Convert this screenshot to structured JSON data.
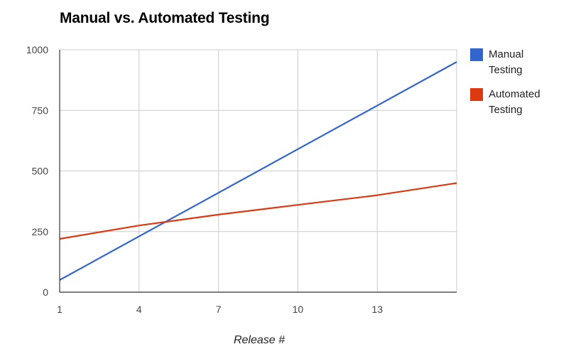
{
  "chart_data": {
    "type": "line",
    "title": "Manual vs. Automated Testing",
    "xlabel": "Release #",
    "ylabel": "",
    "xlim": [
      1,
      16
    ],
    "ylim": [
      0,
      1000
    ],
    "x_ticks": [
      1,
      4,
      7,
      10,
      13
    ],
    "y_ticks": [
      0,
      250,
      500,
      750,
      1000
    ],
    "grid": true,
    "legend_position": "right",
    "series": [
      {
        "name": "Manual Testing",
        "color": "#3366cc",
        "x": [
          1,
          16
        ],
        "y": [
          50,
          950
        ]
      },
      {
        "name": "Automated Testing",
        "color": "#dc3912",
        "x": [
          1,
          4,
          7,
          10,
          13,
          16
        ],
        "y": [
          220,
          275,
          320,
          360,
          400,
          450
        ]
      }
    ]
  }
}
